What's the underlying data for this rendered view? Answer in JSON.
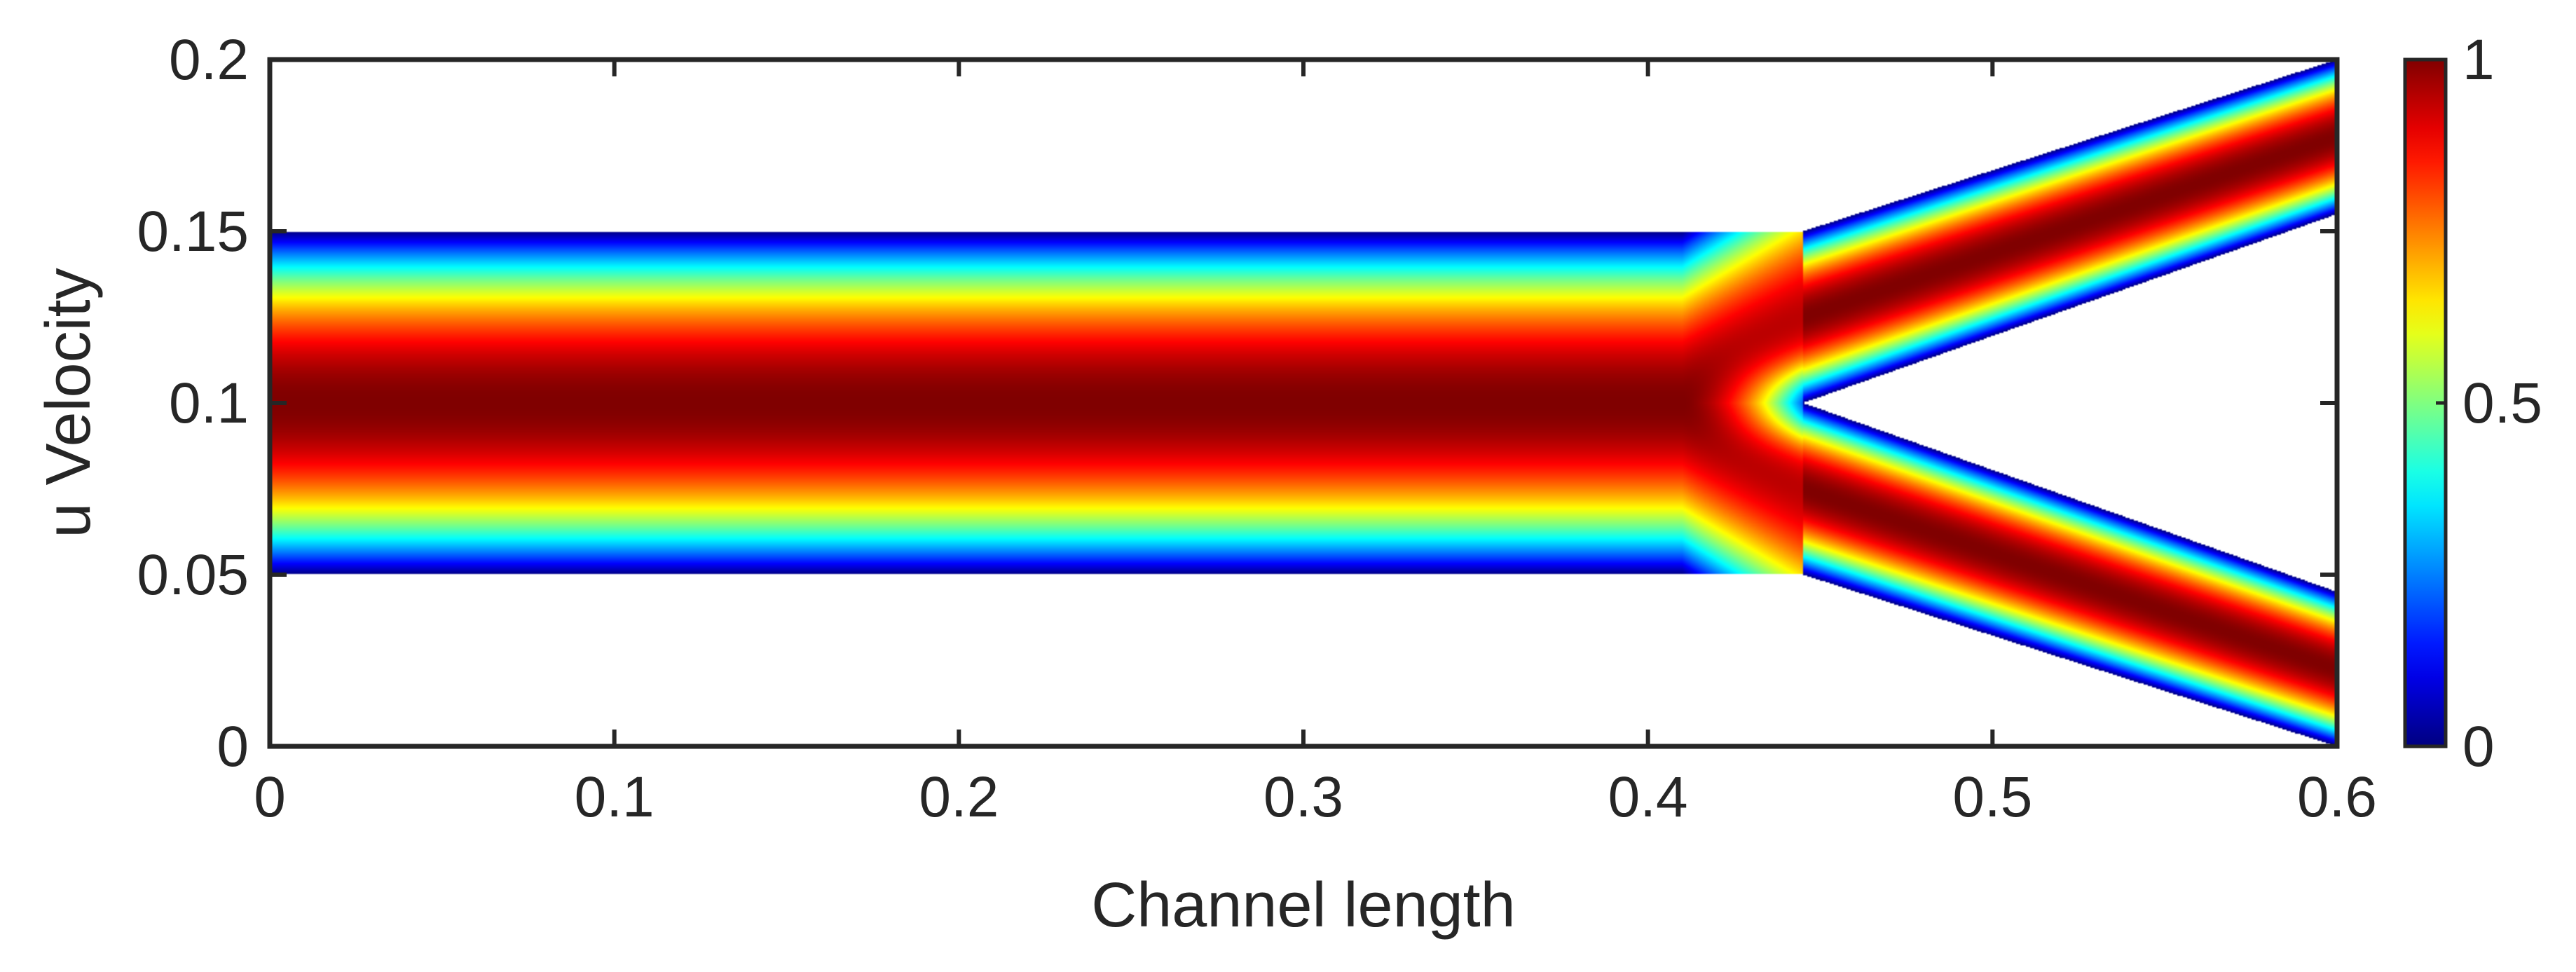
{
  "chart_data": {
    "type": "heatmap",
    "title": "",
    "xlabel": "Channel length",
    "ylabel": "u Velocity",
    "xlim": [
      0,
      0.6
    ],
    "ylim": [
      0,
      0.2
    ],
    "xticks": [
      0,
      0.1,
      0.2,
      0.3,
      0.4,
      0.5,
      0.6
    ],
    "xtick_labels": [
      "0",
      "0.1",
      "0.2",
      "0.3",
      "0.4",
      "0.5",
      "0.6"
    ],
    "yticks": [
      0,
      0.05,
      0.1,
      0.15,
      0.2
    ],
    "ytick_labels": [
      "0",
      "0.05",
      "0.1",
      "0.15",
      "0.2"
    ],
    "colormap": "jet",
    "colorbar": {
      "range": [
        0,
        1
      ],
      "ticks": [
        0,
        0.5,
        1
      ],
      "tick_labels": [
        "0",
        "0.5",
        "1"
      ]
    },
    "value_label": "u Velocity",
    "domain": {
      "straight_channel": {
        "x": [
          0,
          0.445
        ],
        "y": [
          0.05,
          0.15
        ]
      },
      "bifurcation_point": [
        0.445,
        0.1
      ],
      "upper_branch": {
        "outer_wall": [
          [
            0.445,
            0.15
          ],
          [
            0.6,
            0.2
          ]
        ],
        "inner_wall": [
          [
            0.445,
            0.1
          ],
          [
            0.6,
            0.155
          ]
        ]
      },
      "lower_branch": {
        "outer_wall": [
          [
            0.445,
            0.05
          ],
          [
            0.6,
            0.0
          ]
        ],
        "inner_wall": [
          [
            0.445,
            0.1
          ],
          [
            0.6,
            0.045
          ]
        ]
      }
    },
    "field": {
      "profile": "parabolic, u = 1 at channel centreline, u = 0 at walls",
      "max_value": 1,
      "min_value": 0
    },
    "grid": false,
    "legend": "colorbar-right"
  }
}
